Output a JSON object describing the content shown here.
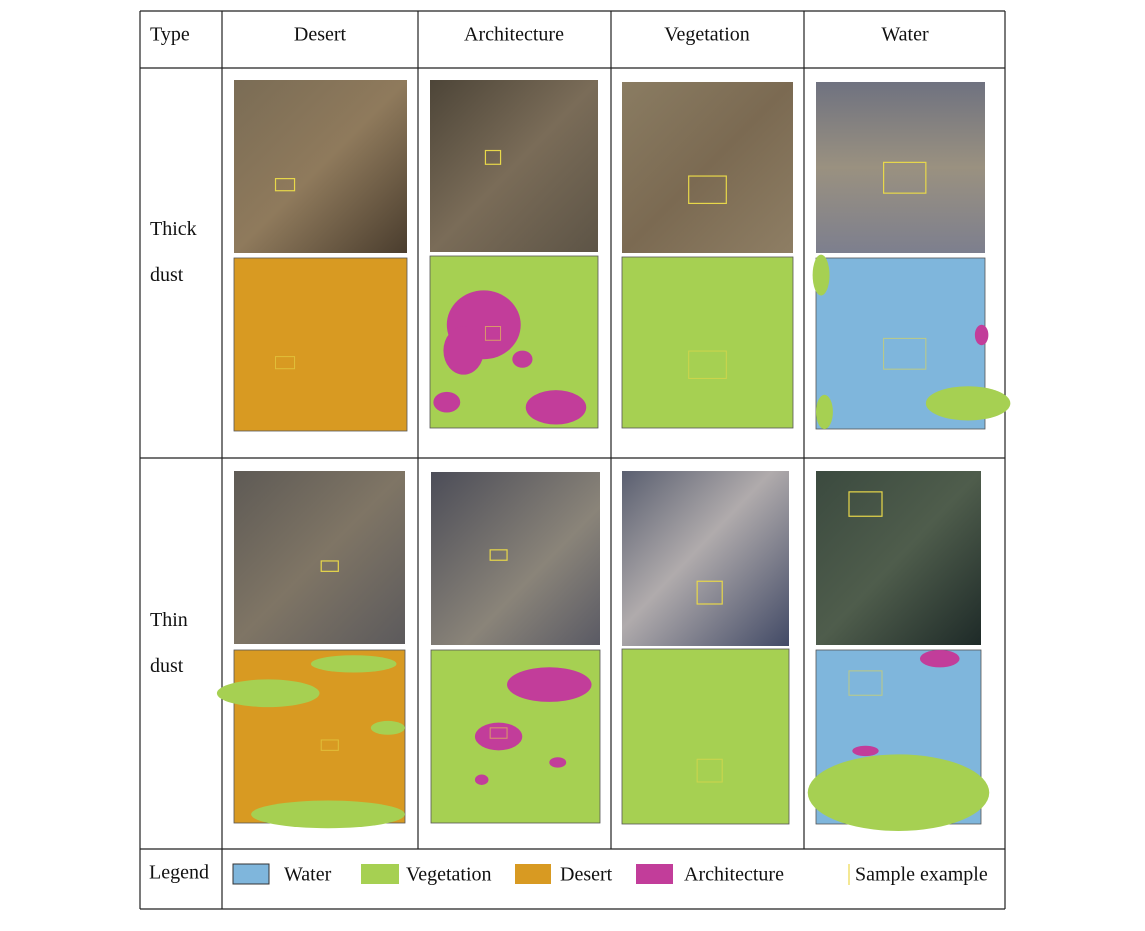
{
  "table": {
    "header": [
      "Type",
      "Desert",
      "Architecture",
      "Vegetation",
      "Water"
    ],
    "rows": [
      [
        "Thick dust"
      ],
      [
        "Thin dust"
      ]
    ]
  },
  "legend": {
    "label": "Legend",
    "items": [
      "Water",
      "Vegetation",
      "Desert",
      "Architecture",
      "Sample example"
    ]
  }
}
